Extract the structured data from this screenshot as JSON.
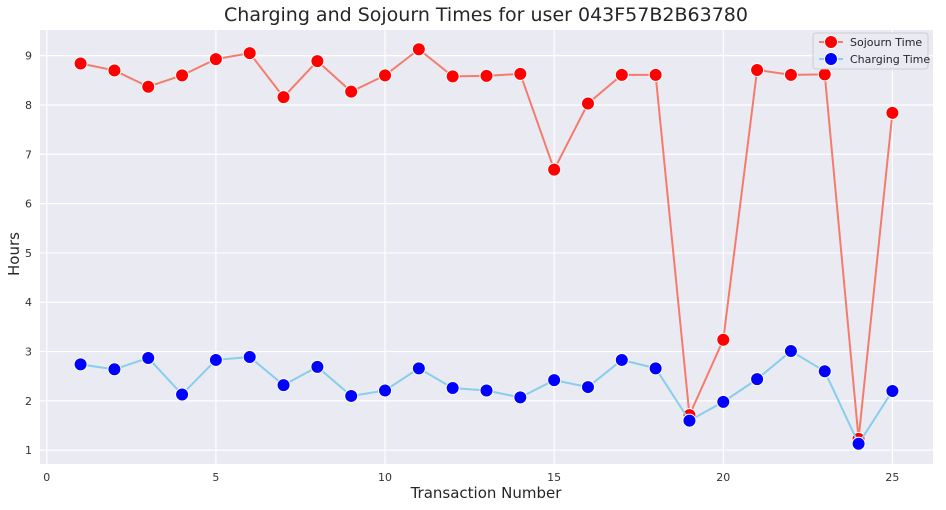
{
  "chart_data": {
    "type": "line",
    "title": "Charging and Sojourn Times for user 043F57B2B63780",
    "xlabel": "Transaction Number",
    "ylabel": "Hours",
    "xlim": [
      -0.2,
      26.2
    ],
    "ylim": [
      0.72,
      9.52
    ],
    "xticks": [
      0,
      5,
      10,
      15,
      20,
      25
    ],
    "yticks": [
      1,
      2,
      3,
      4,
      5,
      6,
      7,
      8,
      9
    ],
    "grid": true,
    "legend_position": "top-right",
    "x": [
      1,
      2,
      3,
      4,
      5,
      6,
      7,
      8,
      9,
      10,
      11,
      12,
      13,
      14,
      15,
      16,
      17,
      18,
      19,
      20,
      21,
      22,
      23,
      24,
      25
    ],
    "series": [
      {
        "name": "Sojourn Time",
        "line_color": "#f47c6e",
        "marker_color": "#ff0000",
        "values": [
          8.84,
          8.7,
          8.37,
          8.6,
          8.93,
          9.05,
          8.16,
          8.89,
          8.27,
          8.6,
          9.13,
          8.58,
          8.59,
          8.63,
          6.69,
          8.03,
          8.61,
          8.61,
          1.71,
          3.24,
          8.71,
          8.61,
          8.62,
          1.23,
          7.84
        ]
      },
      {
        "name": "Charging Time",
        "line_color": "#87ceeb",
        "marker_color": "#0000ff",
        "values": [
          2.74,
          2.64,
          2.87,
          2.13,
          2.83,
          2.89,
          2.32,
          2.69,
          2.1,
          2.21,
          2.66,
          2.26,
          2.21,
          2.07,
          2.42,
          2.28,
          2.83,
          2.66,
          1.6,
          1.98,
          2.44,
          3.01,
          2.6,
          1.13,
          2.2
        ]
      }
    ]
  },
  "style": {
    "plot_background": "#eaeaf2",
    "grid_color": "#ffffff",
    "text_color": "#262626",
    "tick_color": "#333333"
  }
}
